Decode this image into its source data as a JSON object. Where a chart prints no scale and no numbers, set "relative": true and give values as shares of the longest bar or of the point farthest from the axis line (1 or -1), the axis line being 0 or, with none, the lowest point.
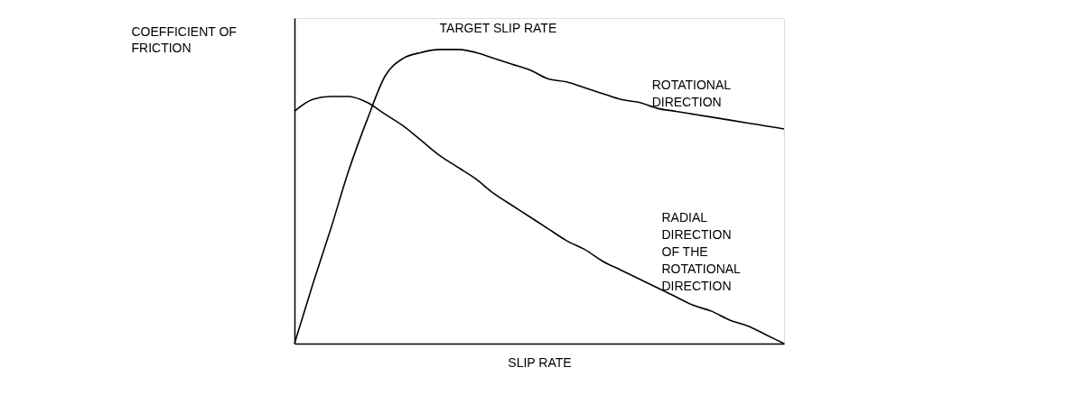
{
  "chart_data": {
    "type": "line",
    "relative": true,
    "xlabel": "SLIP RATE",
    "ylabel": "COEFFICIENT OF FRICTION",
    "annotations": [
      "TARGET SLIP RATE"
    ],
    "categories": [
      null,
      null,
      null,
      null,
      null,
      null,
      null,
      null,
      null,
      null,
      null,
      null,
      null,
      null,
      null,
      null,
      null,
      null,
      null,
      null,
      null,
      null,
      null,
      null,
      null,
      null,
      null,
      null
    ],
    "series": [
      {
        "name": "ROTATIONAL DIRECTION",
        "color": "#000000",
        "values": [
          0,
          0.2,
          0.39,
          0.59,
          0.76,
          0.91,
          0.97,
          0.99,
          1,
          1,
          0.99,
          0.97,
          0.95,
          0.93,
          0.9,
          0.89,
          0.87,
          0.85,
          0.83,
          0.82,
          0.8,
          0.79,
          0.78,
          0.77,
          0.76,
          0.75,
          0.74,
          0.73
        ]
      },
      {
        "name": "RADIAL DIRECTION OF THE ROTATIONAL DIRECTION",
        "color": "#000000",
        "values": [
          0.79,
          0.83,
          0.84,
          0.84,
          0.82,
          0.78,
          0.74,
          0.69,
          0.64,
          0.6,
          0.56,
          0.51,
          0.47,
          0.43,
          0.39,
          0.35,
          0.32,
          0.28,
          0.25,
          0.22,
          0.19,
          0.16,
          0.13,
          0.11,
          0.08,
          0.06,
          0.03,
          0
        ]
      }
    ]
  }
}
